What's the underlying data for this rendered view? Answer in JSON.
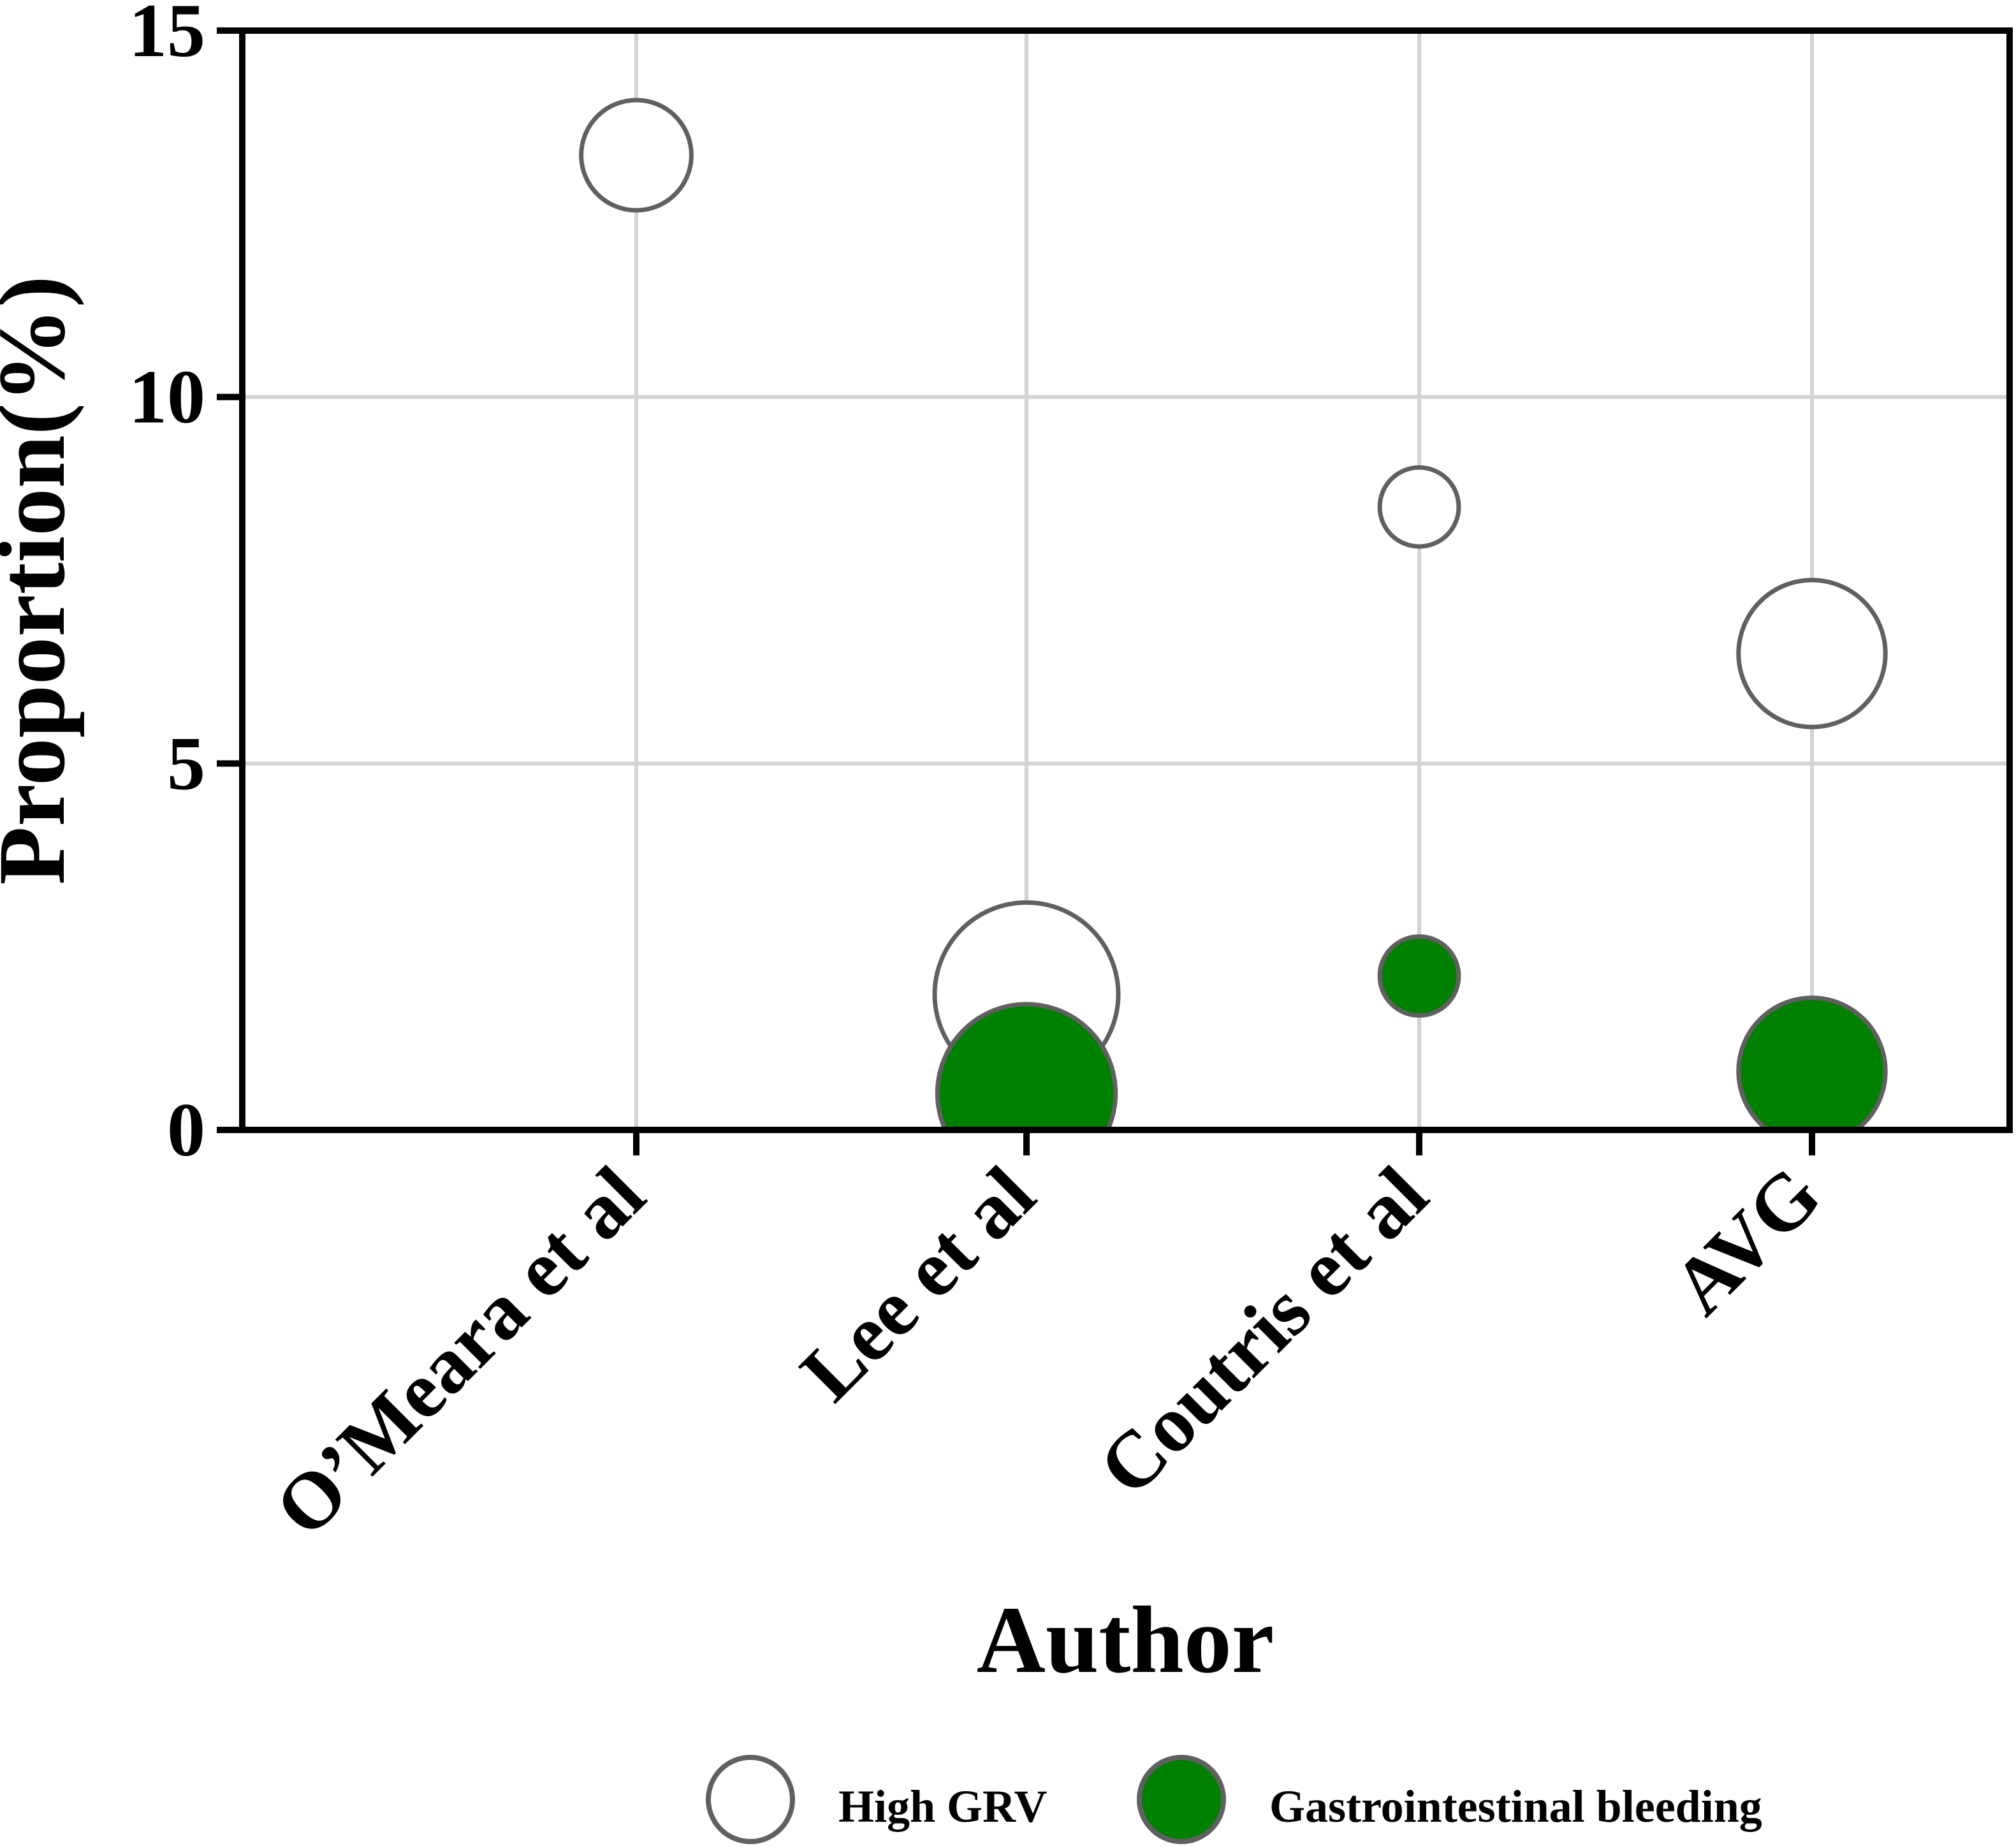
{
  "chart_data": {
    "type": "bubble",
    "xlabel": "Author",
    "ylabel": "Proportion(%)",
    "categories": [
      "O’Meara et al",
      "Lee et al",
      "Coutris et al",
      "AVG"
    ],
    "ylim": [
      0,
      15
    ],
    "yticks": [
      0,
      5,
      10,
      15
    ],
    "grid": true,
    "legend_position": "bottom",
    "series": [
      {
        "name": "High GRV",
        "fill": "#ffffff",
        "stroke": "#606060",
        "points": [
          {
            "category": "O’Meara et al",
            "y": 13.3,
            "size": 0.6
          },
          {
            "category": "Lee et al",
            "y": 1.85,
            "size": 1.0
          },
          {
            "category": "Coutris et al",
            "y": 8.5,
            "size": 0.43
          },
          {
            "category": "AVG",
            "y": 6.5,
            "size": 0.8
          }
        ]
      },
      {
        "name": "Gastrointestinal bleeding",
        "fill": "#008000",
        "stroke": "#606060",
        "points": [
          {
            "category": "Lee et al",
            "y": 0.5,
            "size": 0.97
          },
          {
            "category": "Coutris et al",
            "y": 2.1,
            "size": 0.43
          },
          {
            "category": "AVG",
            "y": 0.8,
            "size": 0.8
          }
        ]
      }
    ]
  }
}
